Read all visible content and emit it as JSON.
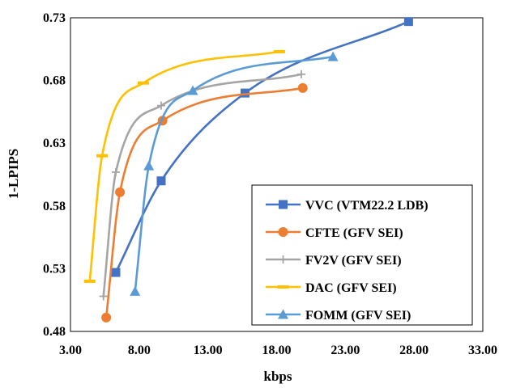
{
  "chart_data": {
    "type": "line",
    "xlabel": "kbps",
    "ylabel": "1-LPIPS",
    "xlim": [
      3,
      33
    ],
    "ylim": [
      0.48,
      0.73
    ],
    "x_ticks": [
      "3.00",
      "8.00",
      "13.00",
      "18.00",
      "23.00",
      "28.00",
      "33.00"
    ],
    "y_ticks": [
      "0.48",
      "0.53",
      "0.58",
      "0.63",
      "0.68",
      "0.73"
    ],
    "grid": false,
    "legend_position": "bottom-right",
    "series": [
      {
        "name": "VVC (VTM22.2 LDB)",
        "color": "#4472C4",
        "marker": "square",
        "points": [
          [
            6.3,
            0.527
          ],
          [
            9.6,
            0.6
          ],
          [
            15.7,
            0.67
          ],
          [
            27.6,
            0.727
          ]
        ]
      },
      {
        "name": "CFTE (GFV SEI)",
        "color": "#ED7D31",
        "marker": "circle",
        "points": [
          [
            5.6,
            0.491
          ],
          [
            6.6,
            0.591
          ],
          [
            9.7,
            0.648
          ],
          [
            19.9,
            0.674
          ]
        ]
      },
      {
        "name": "FV2V (GFV SEI)",
        "color": "#A5A5A5",
        "marker": "plus",
        "points": [
          [
            5.4,
            0.508
          ],
          [
            6.3,
            0.607
          ],
          [
            9.6,
            0.66
          ],
          [
            19.8,
            0.685
          ]
        ]
      },
      {
        "name": "DAC (GFV SEI)",
        "color": "#FFC000",
        "marker": "dash",
        "points": [
          [
            4.4,
            0.52
          ],
          [
            5.3,
            0.62
          ],
          [
            8.3,
            0.678
          ],
          [
            18.2,
            0.703
          ]
        ]
      },
      {
        "name": "FOMM (GFV SEI)",
        "color": "#5B9BD5",
        "marker": "triangle",
        "points": [
          [
            7.7,
            0.512
          ],
          [
            8.7,
            0.612
          ],
          [
            11.9,
            0.672
          ],
          [
            22.1,
            0.699
          ]
        ]
      }
    ]
  }
}
